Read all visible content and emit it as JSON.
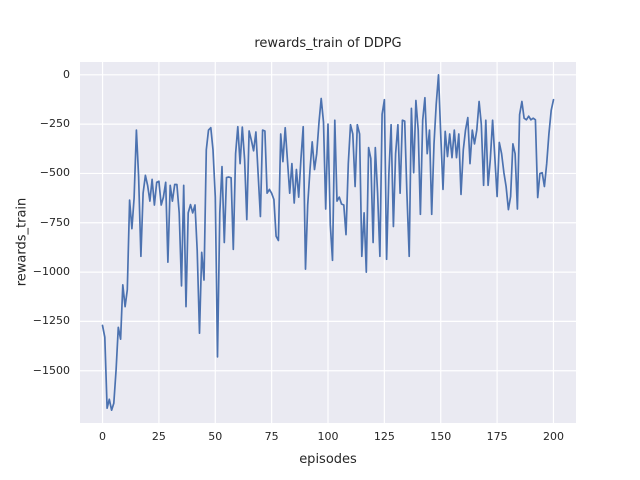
{
  "title": "rewards_train of DDPG",
  "x_axis": {
    "label": "episodes",
    "ticks": [
      {
        "value": 0,
        "label": "0"
      },
      {
        "value": 25,
        "label": "25"
      },
      {
        "value": 50,
        "label": "50"
      },
      {
        "value": 75,
        "label": "75"
      },
      {
        "value": 100,
        "label": "100"
      },
      {
        "value": 125,
        "label": "125"
      },
      {
        "value": 150,
        "label": "150"
      },
      {
        "value": 175,
        "label": "175"
      },
      {
        "value": 200,
        "label": "200"
      }
    ]
  },
  "y_axis": {
    "label": "rewards_train",
    "ticks": [
      {
        "value": 0,
        "label": "0"
      },
      {
        "value": -250,
        "label": "−250"
      },
      {
        "value": -500,
        "label": "−500"
      },
      {
        "value": -750,
        "label": "−750"
      },
      {
        "value": -1000,
        "label": "−1000"
      },
      {
        "value": -1250,
        "label": "−1250"
      },
      {
        "value": -1500,
        "label": "−1500"
      }
    ]
  },
  "style": {
    "panel_bg": "#eaeaf2",
    "grid_color": "#ffffff",
    "line_color": "#4c72b0",
    "text_color": "#262626",
    "figure_bg": "#ffffff"
  },
  "chart_data": {
    "type": "line",
    "title": "rewards_train of DDPG",
    "xlabel": "episodes",
    "ylabel": "rewards_train",
    "x_start": 0,
    "x_step": 1,
    "xlim": [
      -10,
      210
    ],
    "ylim": [
      -1765,
      65
    ],
    "grid": true,
    "legend": false,
    "series": [
      {
        "name": "rewards_train",
        "values": [
          -1270,
          -1330,
          -1690,
          -1645,
          -1700,
          -1665,
          -1495,
          -1280,
          -1340,
          -1065,
          -1175,
          -1090,
          -635,
          -780,
          -625,
          -280,
          -515,
          -920,
          -600,
          -510,
          -560,
          -640,
          -530,
          -660,
          -545,
          -540,
          -660,
          -620,
          -545,
          -950,
          -560,
          -640,
          -556,
          -556,
          -700,
          -1070,
          -560,
          -1175,
          -700,
          -658,
          -700,
          -660,
          -890,
          -1310,
          -900,
          -1040,
          -380,
          -280,
          -268,
          -380,
          -620,
          -1430,
          -700,
          -465,
          -850,
          -521,
          -518,
          -522,
          -885,
          -400,
          -263,
          -450,
          -265,
          -430,
          -734,
          -285,
          -330,
          -385,
          -290,
          -500,
          -718,
          -280,
          -285,
          -600,
          -581,
          -600,
          -632,
          -818,
          -840,
          -300,
          -440,
          -268,
          -430,
          -600,
          -450,
          -650,
          -480,
          -620,
          -430,
          -263,
          -985,
          -660,
          -480,
          -340,
          -480,
          -400,
          -240,
          -120,
          -240,
          -680,
          -250,
          -760,
          -940,
          -230,
          -640,
          -620,
          -655,
          -660,
          -810,
          -450,
          -253,
          -300,
          -566,
          -253,
          -300,
          -920,
          -700,
          -1000,
          -369,
          -424,
          -850,
          -369,
          -600,
          -920,
          -200,
          -126,
          -935,
          -500,
          -253,
          -769,
          -400,
          -253,
          -600,
          -230,
          -235,
          -600,
          -920,
          -170,
          -496,
          -130,
          -280,
          -707,
          -230,
          -116,
          -400,
          -280,
          -707,
          -350,
          -150,
          0,
          -300,
          -581,
          -287,
          -414,
          -300,
          -420,
          -280,
          -420,
          -300,
          -606,
          -380,
          -280,
          -217,
          -450,
          -280,
          -350,
          -280,
          -135,
          -250,
          -560,
          -230,
          -560,
          -430,
          -230,
          -415,
          -617,
          -343,
          -400,
          -496,
          -566,
          -683,
          -617,
          -350,
          -400,
          -680,
          -202,
          -135,
          -220,
          -228,
          -210,
          -228,
          -220,
          -228,
          -622,
          -500,
          -496,
          -566,
          -450,
          -300,
          -180,
          -126
        ]
      }
    ]
  }
}
